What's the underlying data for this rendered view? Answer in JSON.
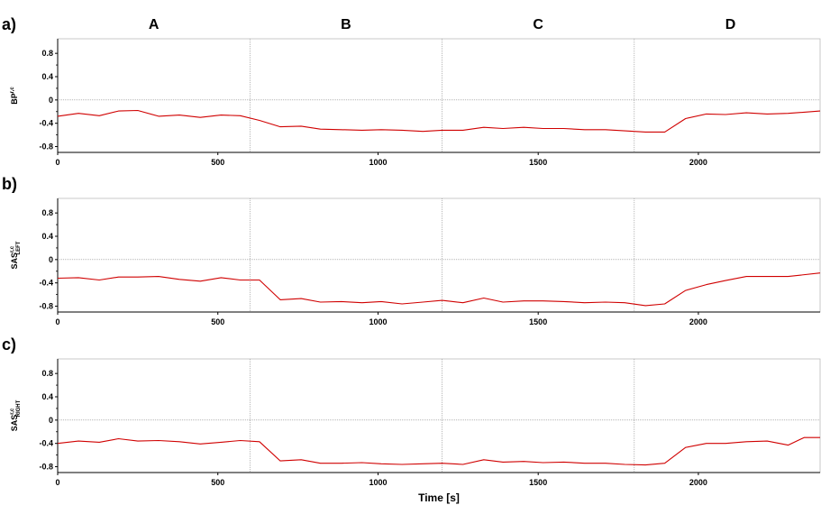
{
  "figure": {
    "x_axis_label": "Time [s]",
    "phases": [
      "A",
      "B",
      "C",
      "D"
    ],
    "phase_boundaries": [
      600,
      1200,
      1800
    ],
    "line_color": "#d00000",
    "grid_color": "#888888"
  },
  "chart_data": [
    {
      "type": "line",
      "panel_letter": "a)",
      "ylabel": {
        "base": "BP",
        "sup": "r,c",
        "sub": ""
      },
      "xlim": [
        0,
        2380
      ],
      "ylim": [
        -0.9,
        1.05
      ],
      "yticks": [
        "0.8",
        "0.4",
        "0",
        "-0.4",
        "-0.8"
      ],
      "ytick_values": [
        0.8,
        0.4,
        0,
        -0.4,
        -0.8
      ],
      "xticks": [
        0,
        500,
        1000,
        1500,
        2000
      ],
      "zero_line": true,
      "series": [
        {
          "x": [
            0,
            65,
            130,
            190,
            250,
            315,
            380,
            445,
            510,
            570,
            630,
            695,
            760,
            820,
            885,
            950,
            1010,
            1075,
            1140,
            1200,
            1265,
            1330,
            1390,
            1455,
            1515,
            1580,
            1645,
            1710,
            1770,
            1835,
            1895,
            1960,
            2025,
            2085,
            2150,
            2215,
            2280,
            2380
          ],
          "y": [
            -0.28,
            -0.23,
            -0.27,
            -0.19,
            -0.18,
            -0.28,
            -0.26,
            -0.3,
            -0.26,
            -0.27,
            -0.35,
            -0.46,
            -0.45,
            -0.5,
            -0.51,
            -0.52,
            -0.51,
            -0.52,
            -0.54,
            -0.52,
            -0.52,
            -0.47,
            -0.49,
            -0.47,
            -0.49,
            -0.49,
            -0.51,
            -0.51,
            -0.53,
            -0.55,
            -0.55,
            -0.32,
            -0.24,
            -0.25,
            -0.22,
            -0.24,
            -0.23,
            -0.19
          ]
        }
      ]
    },
    {
      "type": "line",
      "panel_letter": "b)",
      "ylabel": {
        "base": "SAS",
        "sup": "r,c",
        "sub": "LEFT"
      },
      "xlim": [
        0,
        2380
      ],
      "ylim": [
        -0.9,
        1.05
      ],
      "yticks": [
        "0.8",
        "0.4",
        "0",
        "-0.4",
        "-0.8"
      ],
      "ytick_values": [
        0.8,
        0.4,
        0,
        -0.4,
        -0.8
      ],
      "xticks": [
        0,
        500,
        1000,
        1500,
        2000
      ],
      "zero_line": true,
      "series": [
        {
          "x": [
            0,
            65,
            130,
            190,
            250,
            315,
            380,
            445,
            510,
            570,
            630,
            695,
            760,
            820,
            885,
            950,
            1010,
            1075,
            1140,
            1200,
            1265,
            1330,
            1390,
            1455,
            1515,
            1580,
            1645,
            1710,
            1770,
            1835,
            1895,
            1960,
            2025,
            2085,
            2150,
            2215,
            2280,
            2380
          ],
          "y": [
            -0.32,
            -0.31,
            -0.35,
            -0.3,
            -0.3,
            -0.29,
            -0.34,
            -0.37,
            -0.31,
            -0.35,
            -0.35,
            -0.69,
            -0.67,
            -0.73,
            -0.72,
            -0.74,
            -0.72,
            -0.76,
            -0.73,
            -0.7,
            -0.74,
            -0.66,
            -0.73,
            -0.71,
            -0.71,
            -0.72,
            -0.74,
            -0.73,
            -0.74,
            -0.79,
            -0.76,
            -0.53,
            -0.43,
            -0.36,
            -0.29,
            -0.29,
            -0.29,
            -0.23
          ]
        }
      ]
    },
    {
      "type": "line",
      "panel_letter": "c)",
      "ylabel": {
        "base": "SAS",
        "sup": "r,c",
        "sub": "RIGHT"
      },
      "xlim": [
        0,
        2380
      ],
      "ylim": [
        -0.9,
        1.05
      ],
      "yticks": [
        "0.8",
        "0.4",
        "0",
        "-0.4",
        "-0.8"
      ],
      "ytick_values": [
        0.8,
        0.4,
        0,
        -0.4,
        -0.8
      ],
      "xticks": [
        0,
        500,
        1000,
        1500,
        2000
      ],
      "zero_line": true,
      "series": [
        {
          "x": [
            0,
            65,
            130,
            190,
            250,
            315,
            380,
            445,
            510,
            570,
            630,
            695,
            760,
            820,
            885,
            950,
            1010,
            1075,
            1140,
            1200,
            1265,
            1330,
            1390,
            1455,
            1515,
            1580,
            1645,
            1710,
            1770,
            1835,
            1895,
            1960,
            2025,
            2085,
            2150,
            2215,
            2280,
            2330,
            2380
          ],
          "y": [
            -0.4,
            -0.36,
            -0.38,
            -0.32,
            -0.36,
            -0.35,
            -0.37,
            -0.41,
            -0.38,
            -0.35,
            -0.37,
            -0.7,
            -0.68,
            -0.74,
            -0.74,
            -0.73,
            -0.75,
            -0.76,
            -0.75,
            -0.74,
            -0.76,
            -0.68,
            -0.72,
            -0.71,
            -0.73,
            -0.72,
            -0.74,
            -0.74,
            -0.76,
            -0.77,
            -0.74,
            -0.47,
            -0.4,
            -0.4,
            -0.37,
            -0.36,
            -0.43,
            -0.3,
            -0.3
          ]
        }
      ]
    }
  ]
}
